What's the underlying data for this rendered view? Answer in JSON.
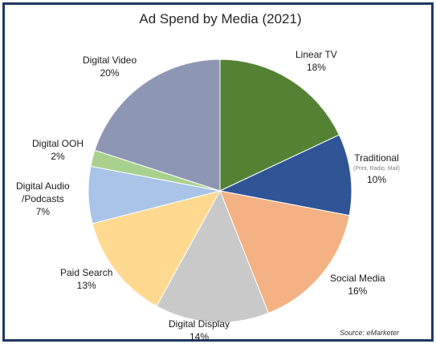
{
  "chart_data": {
    "type": "pie",
    "title": "Ad Spend by Media (2021)",
    "source": "Source: eMarketer",
    "slices": [
      {
        "label": "Linear TV",
        "value": 18,
        "display": "18%",
        "color": "#548235"
      },
      {
        "label": "Traditional",
        "sublabel": "(Print, Radio, Mail)",
        "value": 10,
        "display": "10%",
        "color": "#2f5597"
      },
      {
        "label": "Social Media",
        "value": 16,
        "display": "16%",
        "color": "#f4b183"
      },
      {
        "label": "Digital Display",
        "value": 14,
        "display": "14%",
        "color": "#c9c9c9"
      },
      {
        "label": "Paid Search",
        "value": 13,
        "display": "13%",
        "color": "#ffd98f"
      },
      {
        "label": "Digital Audio /Podcasts",
        "value": 7,
        "display": "7%",
        "color": "#a9c4e8"
      },
      {
        "label": "Digital OOH",
        "value": 2,
        "display": "2%",
        "color": "#a9d18e"
      },
      {
        "label": "Digital Video",
        "value": 20,
        "display": "20%",
        "color": "#8d96b3"
      }
    ]
  }
}
